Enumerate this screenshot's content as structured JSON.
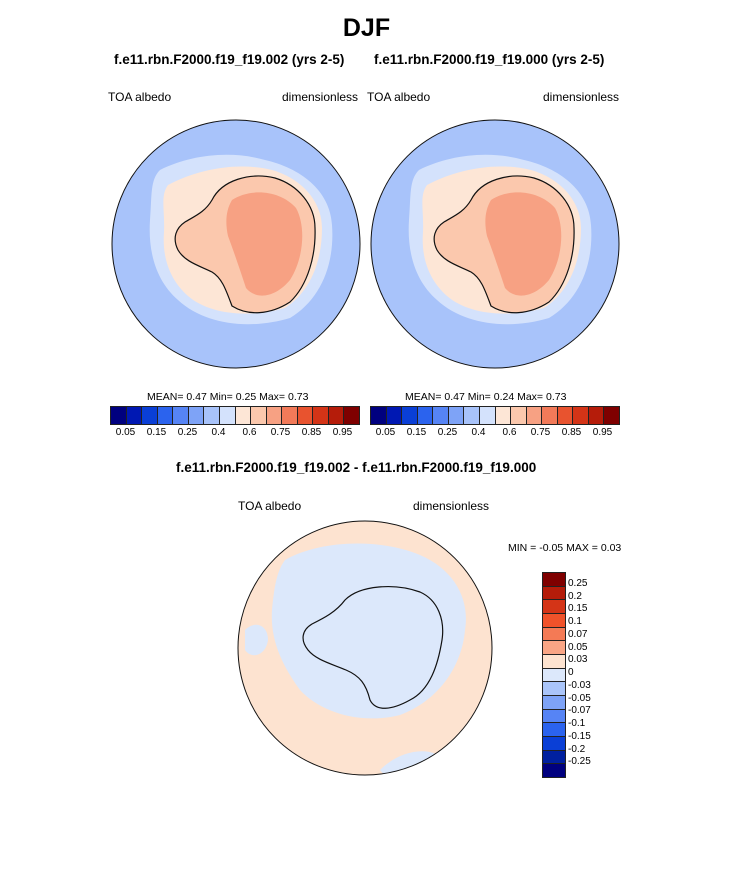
{
  "title": "DJF",
  "panels": [
    {
      "run_title": "f.e11.rbn.F2000.f19_f19.002 (yrs 2-5)",
      "var_label": "TOA albedo",
      "units": "dimensionless",
      "stats": {
        "mean_label": "MEAN=",
        "mean": "0.47",
        "min_label": "Min=",
        "min": "0.25",
        "max_label": "Max=",
        "max": "0.73"
      }
    },
    {
      "run_title": "f.e11.rbn.F2000.f19_f19.000 (yrs 2-5)",
      "var_label": "TOA albedo",
      "units": "dimensionless",
      "stats": {
        "mean_label": "MEAN=",
        "mean": "0.47",
        "min_label": "Min=",
        "min": "0.24",
        "max_label": "Max=",
        "max": "0.73"
      }
    }
  ],
  "diff_panel": {
    "title": "f.e11.rbn.F2000.f19_f19.002 - f.e11.rbn.F2000.f19_f19.000",
    "var_label": "TOA albedo",
    "units": "dimensionless",
    "minmax": {
      "min_label": "MIN =",
      "min": "-0.05",
      "max_label": "MAX =",
      "max": "0.03"
    }
  },
  "colorbar_main": {
    "colors": [
      "#00007f",
      "#0018b3",
      "#0a3fd6",
      "#2b63ee",
      "#5684f5",
      "#7ea3f7",
      "#a8c3fa",
      "#d4e2fc",
      "#fde6d6",
      "#fbc8ad",
      "#f7a183",
      "#f27a59",
      "#e8532f",
      "#d43417",
      "#b51c0a",
      "#7f0000"
    ],
    "tick_labels": [
      "0.05",
      "0.15",
      "0.25",
      "0.4",
      "0.6",
      "0.75",
      "0.85",
      "0.95"
    ]
  },
  "colorbar_diff": {
    "colors": [
      "#7f0000",
      "#b51c0a",
      "#d43417",
      "#f0522a",
      "#f47a55",
      "#f9a585",
      "#fde3d0",
      "#dce8fb",
      "#aac5fa",
      "#7ea3f7",
      "#5684f5",
      "#2b63ee",
      "#0a3fd6",
      "#00209f",
      "#00007f"
    ],
    "tick_labels": [
      "0.25",
      "0.2",
      "0.15",
      "0.1",
      "0.07",
      "0.05",
      "0.03",
      "0",
      "-0.03",
      "-0.05",
      "-0.07",
      "-0.1",
      "-0.15",
      "-0.2",
      "-0.25"
    ]
  },
  "chart_data": [
    {
      "type": "heatmap",
      "projection": "south polar stereographic",
      "title": "f.e11.rbn.F2000.f19_f19.002 (yrs 2-5)",
      "variable": "TOA albedo",
      "units": "dimensionless",
      "mean": 0.47,
      "min": 0.25,
      "max": 0.73,
      "levels": [
        0.05,
        0.1,
        0.15,
        0.2,
        0.25,
        0.3,
        0.35,
        0.4,
        0.5,
        0.6,
        0.7,
        0.75,
        0.8,
        0.85,
        0.9,
        0.95
      ]
    },
    {
      "type": "heatmap",
      "projection": "south polar stereographic",
      "title": "f.e11.rbn.F2000.f19_f19.000 (yrs 2-5)",
      "variable": "TOA albedo",
      "units": "dimensionless",
      "mean": 0.47,
      "min": 0.24,
      "max": 0.73,
      "levels": [
        0.05,
        0.1,
        0.15,
        0.2,
        0.25,
        0.3,
        0.35,
        0.4,
        0.5,
        0.6,
        0.7,
        0.75,
        0.8,
        0.85,
        0.9,
        0.95
      ]
    },
    {
      "type": "heatmap",
      "projection": "south polar stereographic",
      "title": "f.e11.rbn.F2000.f19_f19.002 - f.e11.rbn.F2000.f19_f19.000",
      "variable": "TOA albedo",
      "units": "dimensionless",
      "min": -0.05,
      "max": 0.03,
      "levels": [
        -0.25,
        -0.2,
        -0.15,
        -0.1,
        -0.07,
        -0.05,
        -0.03,
        0,
        0.03,
        0.05,
        0.07,
        0.1,
        0.15,
        0.2,
        0.25
      ]
    }
  ]
}
